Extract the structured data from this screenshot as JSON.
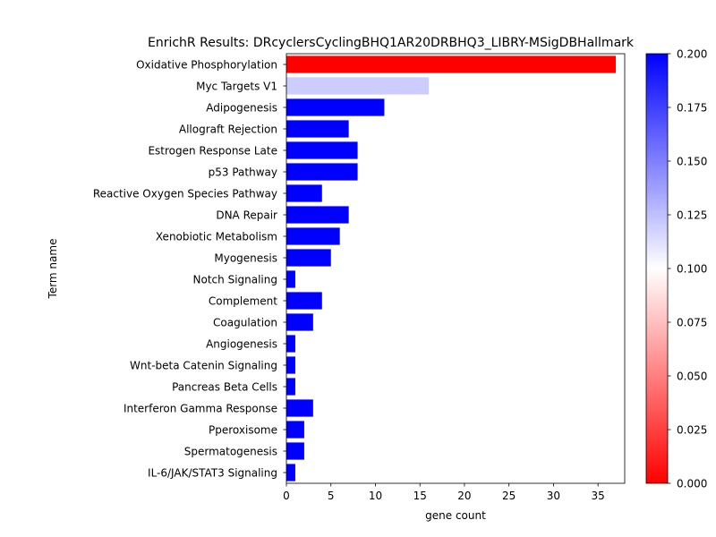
{
  "chart_data": {
    "type": "bar",
    "orientation": "horizontal",
    "title": "EnrichR Results: DRcyclersCyclingBHQ1AR20DRBHQ3_LIBRY-MSigDBHallmark",
    "xlabel": "gene count",
    "ylabel": "Term name",
    "xlim": [
      0,
      38
    ],
    "x_ticks": [
      0,
      5,
      10,
      15,
      20,
      25,
      30,
      35
    ],
    "grid": false,
    "categories": [
      "Oxidative Phosphorylation",
      "Myc Targets V1",
      "Adipogenesis",
      "Allograft Rejection",
      "Estrogen Response Late",
      "p53 Pathway",
      "Reactive Oxygen Species Pathway",
      "DNA Repair",
      "Xenobiotic Metabolism",
      "Myogenesis",
      "Notch Signaling",
      "Complement",
      "Coagulation",
      "Angiogenesis",
      "Wnt-beta Catenin Signaling",
      "Pancreas Beta Cells",
      "Interferon Gamma Response",
      "Pperoxisome",
      "Spermatogenesis",
      "IL-6/JAK/STAT3 Signaling"
    ],
    "values": [
      37,
      16,
      11,
      7,
      8,
      8,
      4,
      7,
      6,
      5,
      1,
      4,
      3,
      1,
      1,
      1,
      3,
      2,
      2,
      1
    ],
    "color_values": [
      0.0,
      0.12,
      0.2,
      0.2,
      0.2,
      0.2,
      0.2,
      0.2,
      0.2,
      0.2,
      0.2,
      0.2,
      0.2,
      0.2,
      0.2,
      0.2,
      0.2,
      0.2,
      0.2,
      0.2
    ],
    "colorbar": {
      "colormap": "bwr_r",
      "range": [
        0.0,
        0.2
      ],
      "ticks": [
        "0.000",
        "0.025",
        "0.050",
        "0.075",
        "0.100",
        "0.125",
        "0.150",
        "0.175",
        "0.200"
      ],
      "colors": {
        "low": "#ff0000",
        "mid": "#ffffff",
        "high": "#0000ff"
      }
    }
  }
}
